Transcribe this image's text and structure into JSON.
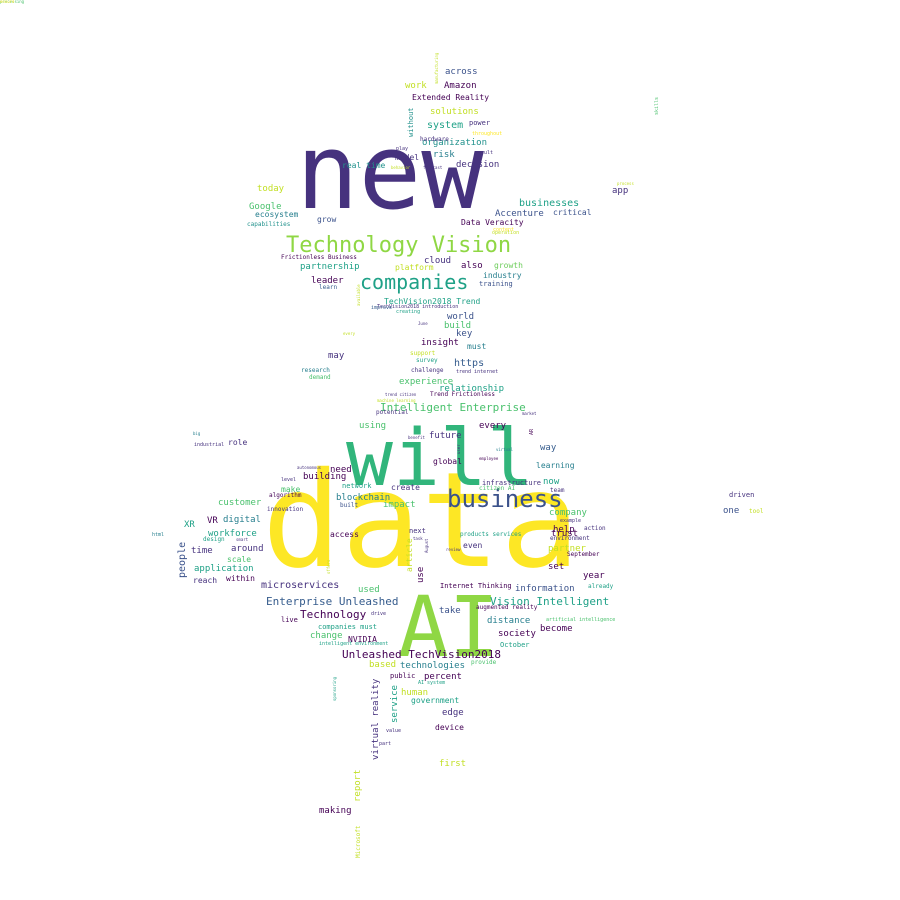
{
  "palette": {
    "deep_purple": "#440154",
    "indigo": "#46327e",
    "blue": "#365c8d",
    "steel": "#277f8e",
    "teal": "#1fa187",
    "green": "#4ac16d",
    "lime": "#a0da39",
    "yellow": "#fde725"
  },
  "words": [
    {
      "text": "data",
      "size": 132,
      "color": "#fde725"
    },
    {
      "text": "new",
      "size": 104,
      "color": "#46327e"
    },
    {
      "text": "will",
      "size": 78,
      "color": "#31b57b"
    },
    {
      "text": "AI",
      "size": 84,
      "color": "#8fd744"
    },
    {
      "text": "business",
      "size": 24,
      "color": "#3b528b"
    },
    {
      "text": "Technology Vision",
      "size": 22,
      "color": "#8fd744"
    },
    {
      "text": "companies",
      "size": 20,
      "color": "#1fa187"
    },
    {
      "text": "Intelligent Enterprise",
      "size": 11,
      "color": "#4ac16d"
    },
    {
      "text": "Unleashed TechVision2018",
      "size": 11,
      "color": "#440154"
    },
    {
      "text": "Enterprise Unleashed",
      "size": 11,
      "color": "#365c8d"
    },
    {
      "text": "Vision Intelligent",
      "size": 11,
      "color": "#1fa187"
    },
    {
      "text": "Technology",
      "size": 11,
      "color": "#440154"
    },
    {
      "text": "microservices",
      "size": 10,
      "color": "#46327e"
    },
    {
      "text": "businesses",
      "size": 10,
      "color": "#1fa187"
    },
    {
      "text": "Accenture",
      "size": 9,
      "color": "#3b528b"
    },
    {
      "text": "system",
      "size": 10,
      "color": "#1fa187"
    },
    {
      "text": "solutions",
      "size": 9,
      "color": "#c2df23"
    },
    {
      "text": "organization",
      "size": 9,
      "color": "#21918c"
    },
    {
      "text": "decision",
      "size": 9,
      "color": "#46327e"
    },
    {
      "text": "Amazon",
      "size": 9,
      "color": "#440154"
    },
    {
      "text": "across",
      "size": 9,
      "color": "#3b528b"
    },
    {
      "text": "work",
      "size": 9,
      "color": "#c2df23"
    },
    {
      "text": "Extended Reality",
      "size": 8,
      "color": "#440154"
    },
    {
      "text": "power",
      "size": 7,
      "color": "#46327e"
    },
    {
      "text": "risk",
      "size": 9,
      "color": "#277f8e"
    },
    {
      "text": "model",
      "size": 8,
      "color": "#46327e"
    },
    {
      "text": "real time",
      "size": 8,
      "color": "#21918c"
    },
    {
      "text": "today",
      "size": 9,
      "color": "#c2df23"
    },
    {
      "text": "Google",
      "size": 9,
      "color": "#4ac16d"
    },
    {
      "text": "ecosystem",
      "size": 8,
      "color": "#277f8e"
    },
    {
      "text": "capabilities",
      "size": 6,
      "color": "#21918c"
    },
    {
      "text": "grow",
      "size": 8,
      "color": "#3b528b"
    },
    {
      "text": "app",
      "size": 9,
      "color": "#46327e"
    },
    {
      "text": "critical",
      "size": 8,
      "color": "#3b528b"
    },
    {
      "text": "Data Veracity",
      "size": 8,
      "color": "#440154"
    },
    {
      "text": "Frictionless Business",
      "size": 6,
      "color": "#440154"
    },
    {
      "text": "partnership",
      "size": 9,
      "color": "#1fa187"
    },
    {
      "text": "platform",
      "size": 8,
      "color": "#c2df23"
    },
    {
      "text": "cloud",
      "size": 9,
      "color": "#46327e"
    },
    {
      "text": "also",
      "size": 9,
      "color": "#440154"
    },
    {
      "text": "growth",
      "size": 8,
      "color": "#6ccd5a"
    },
    {
      "text": "industry",
      "size": 8,
      "color": "#277f8e"
    },
    {
      "text": "training",
      "size": 7,
      "color": "#3b528b"
    },
    {
      "text": "leader",
      "size": 9,
      "color": "#440154"
    },
    {
      "text": "learn",
      "size": 6,
      "color": "#365c8d"
    },
    {
      "text": "TechVision2018 Trend",
      "size": 8,
      "color": "#1fa187"
    },
    {
      "text": "TechVision2018 introduction",
      "size": 5,
      "color": "#46327e"
    },
    {
      "text": "improve",
      "size": 5,
      "color": "#365c8d"
    },
    {
      "text": "world",
      "size": 9,
      "color": "#3b528b"
    },
    {
      "text": "build",
      "size": 9,
      "color": "#4ac16d"
    },
    {
      "text": "key",
      "size": 9,
      "color": "#3b528b"
    },
    {
      "text": "insight",
      "size": 9,
      "color": "#440154"
    },
    {
      "text": "must",
      "size": 8,
      "color": "#277f8e"
    },
    {
      "text": "may",
      "size": 9,
      "color": "#46327e"
    },
    {
      "text": "https",
      "size": 10,
      "color": "#365c8d"
    },
    {
      "text": "support",
      "size": 6,
      "color": "#c2df23"
    },
    {
      "text": "survey",
      "size": 6,
      "color": "#1fa187"
    },
    {
      "text": "challenge",
      "size": 6,
      "color": "#46327e"
    },
    {
      "text": "trend internet",
      "size": 5,
      "color": "#46327e"
    },
    {
      "text": "research",
      "size": 6,
      "color": "#277f8e"
    },
    {
      "text": "demand",
      "size": 6,
      "color": "#4ac16d"
    },
    {
      "text": "experience",
      "size": 9,
      "color": "#4ac16d"
    },
    {
      "text": "relationship",
      "size": 9,
      "color": "#1fa187"
    },
    {
      "text": "Trend Frictionless",
      "size": 6,
      "color": "#440154"
    },
    {
      "text": "potential",
      "size": 6,
      "color": "#46327e"
    },
    {
      "text": "using",
      "size": 9,
      "color": "#4ac16d"
    },
    {
      "text": "every",
      "size": 9,
      "color": "#440154"
    },
    {
      "text": "future",
      "size": 9,
      "color": "#46327e"
    },
    {
      "text": "way",
      "size": 9,
      "color": "#365c8d"
    },
    {
      "text": "global",
      "size": 8,
      "color": "#440154"
    },
    {
      "text": "learning",
      "size": 8,
      "color": "#277f8e"
    },
    {
      "text": "role",
      "size": 8,
      "color": "#46327e"
    },
    {
      "text": "industrial",
      "size": 5,
      "color": "#46327e"
    },
    {
      "text": "need",
      "size": 9,
      "color": "#440154"
    },
    {
      "text": "building",
      "size": 9,
      "color": "#440154"
    },
    {
      "text": "network",
      "size": 7,
      "color": "#1fa187"
    },
    {
      "text": "create",
      "size": 8,
      "color": "#46327e"
    },
    {
      "text": "infrastructure",
      "size": 7,
      "color": "#46327e"
    },
    {
      "text": "now",
      "size": 9,
      "color": "#1fa187"
    },
    {
      "text": "team",
      "size": 6,
      "color": "#46327e"
    },
    {
      "text": "make",
      "size": 8,
      "color": "#4ac16d"
    },
    {
      "text": "blockchain",
      "size": 9,
      "color": "#277f8e"
    },
    {
      "text": "impact",
      "size": 9,
      "color": "#4ac16d"
    },
    {
      "text": "built",
      "size": 6,
      "color": "#3b528b"
    },
    {
      "text": "algorithm",
      "size": 6,
      "color": "#440154"
    },
    {
      "text": "innovation",
      "size": 6,
      "color": "#46327e"
    },
    {
      "text": "customer",
      "size": 9,
      "color": "#4ac16d"
    },
    {
      "text": "company",
      "size": 9,
      "color": "#4ac16d"
    },
    {
      "text": "workforce",
      "size": 9,
      "color": "#1fa187"
    },
    {
      "text": "digital",
      "size": 9,
      "color": "#277f8e"
    },
    {
      "text": "XR",
      "size": 9,
      "color": "#1fa187"
    },
    {
      "text": "VR",
      "size": 9,
      "color": "#440154"
    },
    {
      "text": "scale",
      "size": 8,
      "color": "#4ac16d"
    },
    {
      "text": "access",
      "size": 8,
      "color": "#440154"
    },
    {
      "text": "trust",
      "size": 9,
      "color": "#440154"
    },
    {
      "text": "next",
      "size": 7,
      "color": "#46327e"
    },
    {
      "text": "environment",
      "size": 6,
      "color": "#46327e"
    },
    {
      "text": "partner",
      "size": 9,
      "color": "#c2df23"
    },
    {
      "text": "around",
      "size": 9,
      "color": "#46327e"
    },
    {
      "text": "time",
      "size": 9,
      "color": "#46327e"
    },
    {
      "text": "people",
      "size": 10,
      "color": "#3b528b"
    },
    {
      "text": "application",
      "size": 9,
      "color": "#1fa187"
    },
    {
      "text": "reach",
      "size": 8,
      "color": "#46327e"
    },
    {
      "text": "within",
      "size": 8,
      "color": "#440154"
    },
    {
      "text": "even",
      "size": 8,
      "color": "#46327e"
    },
    {
      "text": "set",
      "size": 9,
      "color": "#440154"
    },
    {
      "text": "year",
      "size": 9,
      "color": "#440154"
    },
    {
      "text": "September",
      "size": 6,
      "color": "#440154"
    },
    {
      "text": "help",
      "size": 9,
      "color": "#440154"
    },
    {
      "text": "action",
      "size": 6,
      "color": "#46327e"
    },
    {
      "text": "become",
      "size": 9,
      "color": "#440154"
    },
    {
      "text": "society",
      "size": 9,
      "color": "#440154"
    },
    {
      "text": "distance",
      "size": 9,
      "color": "#277f8e"
    },
    {
      "text": "take",
      "size": 9,
      "color": "#3b528b"
    },
    {
      "text": "information",
      "size": 9,
      "color": "#3b528b"
    },
    {
      "text": "used",
      "size": 9,
      "color": "#4ac16d"
    },
    {
      "text": "use",
      "size": 9,
      "color": "#440154"
    },
    {
      "text": "article",
      "size": 8,
      "color": "#c2df23"
    },
    {
      "text": "Internet Thinking",
      "size": 7,
      "color": "#440154"
    },
    {
      "text": "augmented reality",
      "size": 6,
      "color": "#440154"
    },
    {
      "text": "already",
      "size": 6,
      "color": "#1fa187"
    },
    {
      "text": "artificial intelligence",
      "size": 5,
      "color": "#4ac16d"
    },
    {
      "text": "products services",
      "size": 6,
      "color": "#1fa187"
    },
    {
      "text": "NVIDIA",
      "size": 8,
      "color": "#440154"
    },
    {
      "text": "change",
      "size": 9,
      "color": "#4ac16d"
    },
    {
      "text": "companies must",
      "size": 7,
      "color": "#1fa187"
    },
    {
      "text": "October",
      "size": 7,
      "color": "#1fa187"
    },
    {
      "text": "intelligent environment",
      "size": 5,
      "color": "#1fa187"
    },
    {
      "text": "provide",
      "size": 6,
      "color": "#4ac16d"
    },
    {
      "text": "live",
      "size": 7,
      "color": "#440154"
    },
    {
      "text": "drive",
      "size": 5,
      "color": "#46327e"
    },
    {
      "text": "based",
      "size": 9,
      "color": "#c2df23"
    },
    {
      "text": "technologies",
      "size": 9,
      "color": "#277f8e"
    },
    {
      "text": "percent",
      "size": 9,
      "color": "#440154"
    },
    {
      "text": "public",
      "size": 7,
      "color": "#440154"
    },
    {
      "text": "AI system",
      "size": 5,
      "color": "#1fa187"
    },
    {
      "text": "human",
      "size": 9,
      "color": "#c2df23"
    },
    {
      "text": "government",
      "size": 8,
      "color": "#1fa187"
    },
    {
      "text": "edge",
      "size": 9,
      "color": "#46327e"
    },
    {
      "text": "device",
      "size": 8,
      "color": "#440154"
    },
    {
      "text": "value",
      "size": 5,
      "color": "#46327e"
    },
    {
      "text": "part",
      "size": 5,
      "color": "#46327e"
    },
    {
      "text": "service",
      "size": 9,
      "color": "#1fa187"
    },
    {
      "text": "virtual reality",
      "size": 9,
      "color": "#46327e"
    },
    {
      "text": "first",
      "size": 9,
      "color": "#c2df23"
    },
    {
      "text": "report",
      "size": 9,
      "color": "#c2df23"
    },
    {
      "text": "making",
      "size": 9,
      "color": "#440154"
    },
    {
      "text": "Microsoft",
      "size": 6,
      "color": "#c2df23"
    },
    {
      "text": "driven",
      "size": 7,
      "color": "#46327e"
    },
    {
      "text": "one",
      "size": 9,
      "color": "#3b528b"
    },
    {
      "text": "tool",
      "size": 6,
      "color": "#c2df23"
    },
    {
      "text": "html",
      "size": 5,
      "color": "#277f8e"
    },
    {
      "text": "design",
      "size": 6,
      "color": "#1fa187"
    },
    {
      "text": "skills",
      "size": 5,
      "color": "#4ac16d"
    },
    {
      "text": "without",
      "size": 7,
      "color": "#21918c"
    },
    {
      "text": "hardware",
      "size": 6,
      "color": "#46327e"
    },
    {
      "text": "throughout",
      "size": 5,
      "color": "#fde725"
    },
    {
      "text": "result",
      "size": 5,
      "color": "#46327e"
    },
    {
      "text": "forecast",
      "size": 4,
      "color": "#46327e"
    },
    {
      "text": "behavior",
      "size": 4,
      "color": "#c2df23"
    },
    {
      "text": "citizen AI",
      "size": 6,
      "color": "#4ac16d"
    },
    {
      "text": "level",
      "size": 5,
      "color": "#46327e"
    },
    {
      "text": "example",
      "size": 5,
      "color": "#46327e"
    },
    {
      "text": "big",
      "size": 4,
      "color": "#277f8e"
    },
    {
      "text": "autonomous",
      "size": 4,
      "color": "#46327e"
    },
    {
      "text": "employee",
      "size": 4,
      "color": "#440154"
    },
    {
      "text": "August",
      "size": 4,
      "color": "#46327e"
    },
    {
      "text": "review",
      "size": 4,
      "color": "#46327e"
    },
    {
      "text": "task",
      "size": 4,
      "color": "#46327e"
    },
    {
      "text": "user",
      "size": 4,
      "color": "#46327e"
    },
    {
      "text": "market",
      "size": 4,
      "color": "#46327e"
    },
    {
      "text": "play",
      "size": 5,
      "color": "#46327e"
    },
    {
      "text": "June",
      "size": 4,
      "color": "#46327e"
    },
    {
      "text": "every",
      "size": 4,
      "color": "#c2df23"
    },
    {
      "text": "available",
      "size": 4,
      "color": "#c2df23"
    },
    {
      "text": "creating",
      "size": 5,
      "color": "#1fa187"
    },
    {
      "text": "process",
      "size": 4,
      "color": "#c2df23"
    },
    {
      "text": "content",
      "size": 5,
      "color": "#fde725"
    },
    {
      "text": "operation",
      "size": 5,
      "color": "#c2df23"
    },
    {
      "text": "virtual",
      "size": 4,
      "color": "#277f8e"
    },
    {
      "text": "trend citizen",
      "size": 4,
      "color": "#46327e"
    },
    {
      "text": "benefit",
      "size": 4,
      "color": "#46327e"
    },
    {
      "text": "machine learning",
      "size": 4,
      "color": "#c2df23"
    },
    {
      "text": "AR",
      "size": 5,
      "color": "#440154"
    },
    {
      "text": "smart",
      "size": 4,
      "color": "#46327e"
    },
    {
      "text": "offers",
      "size": 4,
      "color": "#c2df23"
    },
    {
      "text": "sponsoring",
      "size": 4,
      "color": "#1fa187"
    },
    {
      "text": "manufacturing",
      "size": 4,
      "color": "#c2df23"
    },
    {
      "text": "processing",
      "size": 4,
      "color": "#4ac16d"
    },
    {
      "text": "ensure",
      "size": 4,
      "color": "#fde725"
    }
  ]
}
